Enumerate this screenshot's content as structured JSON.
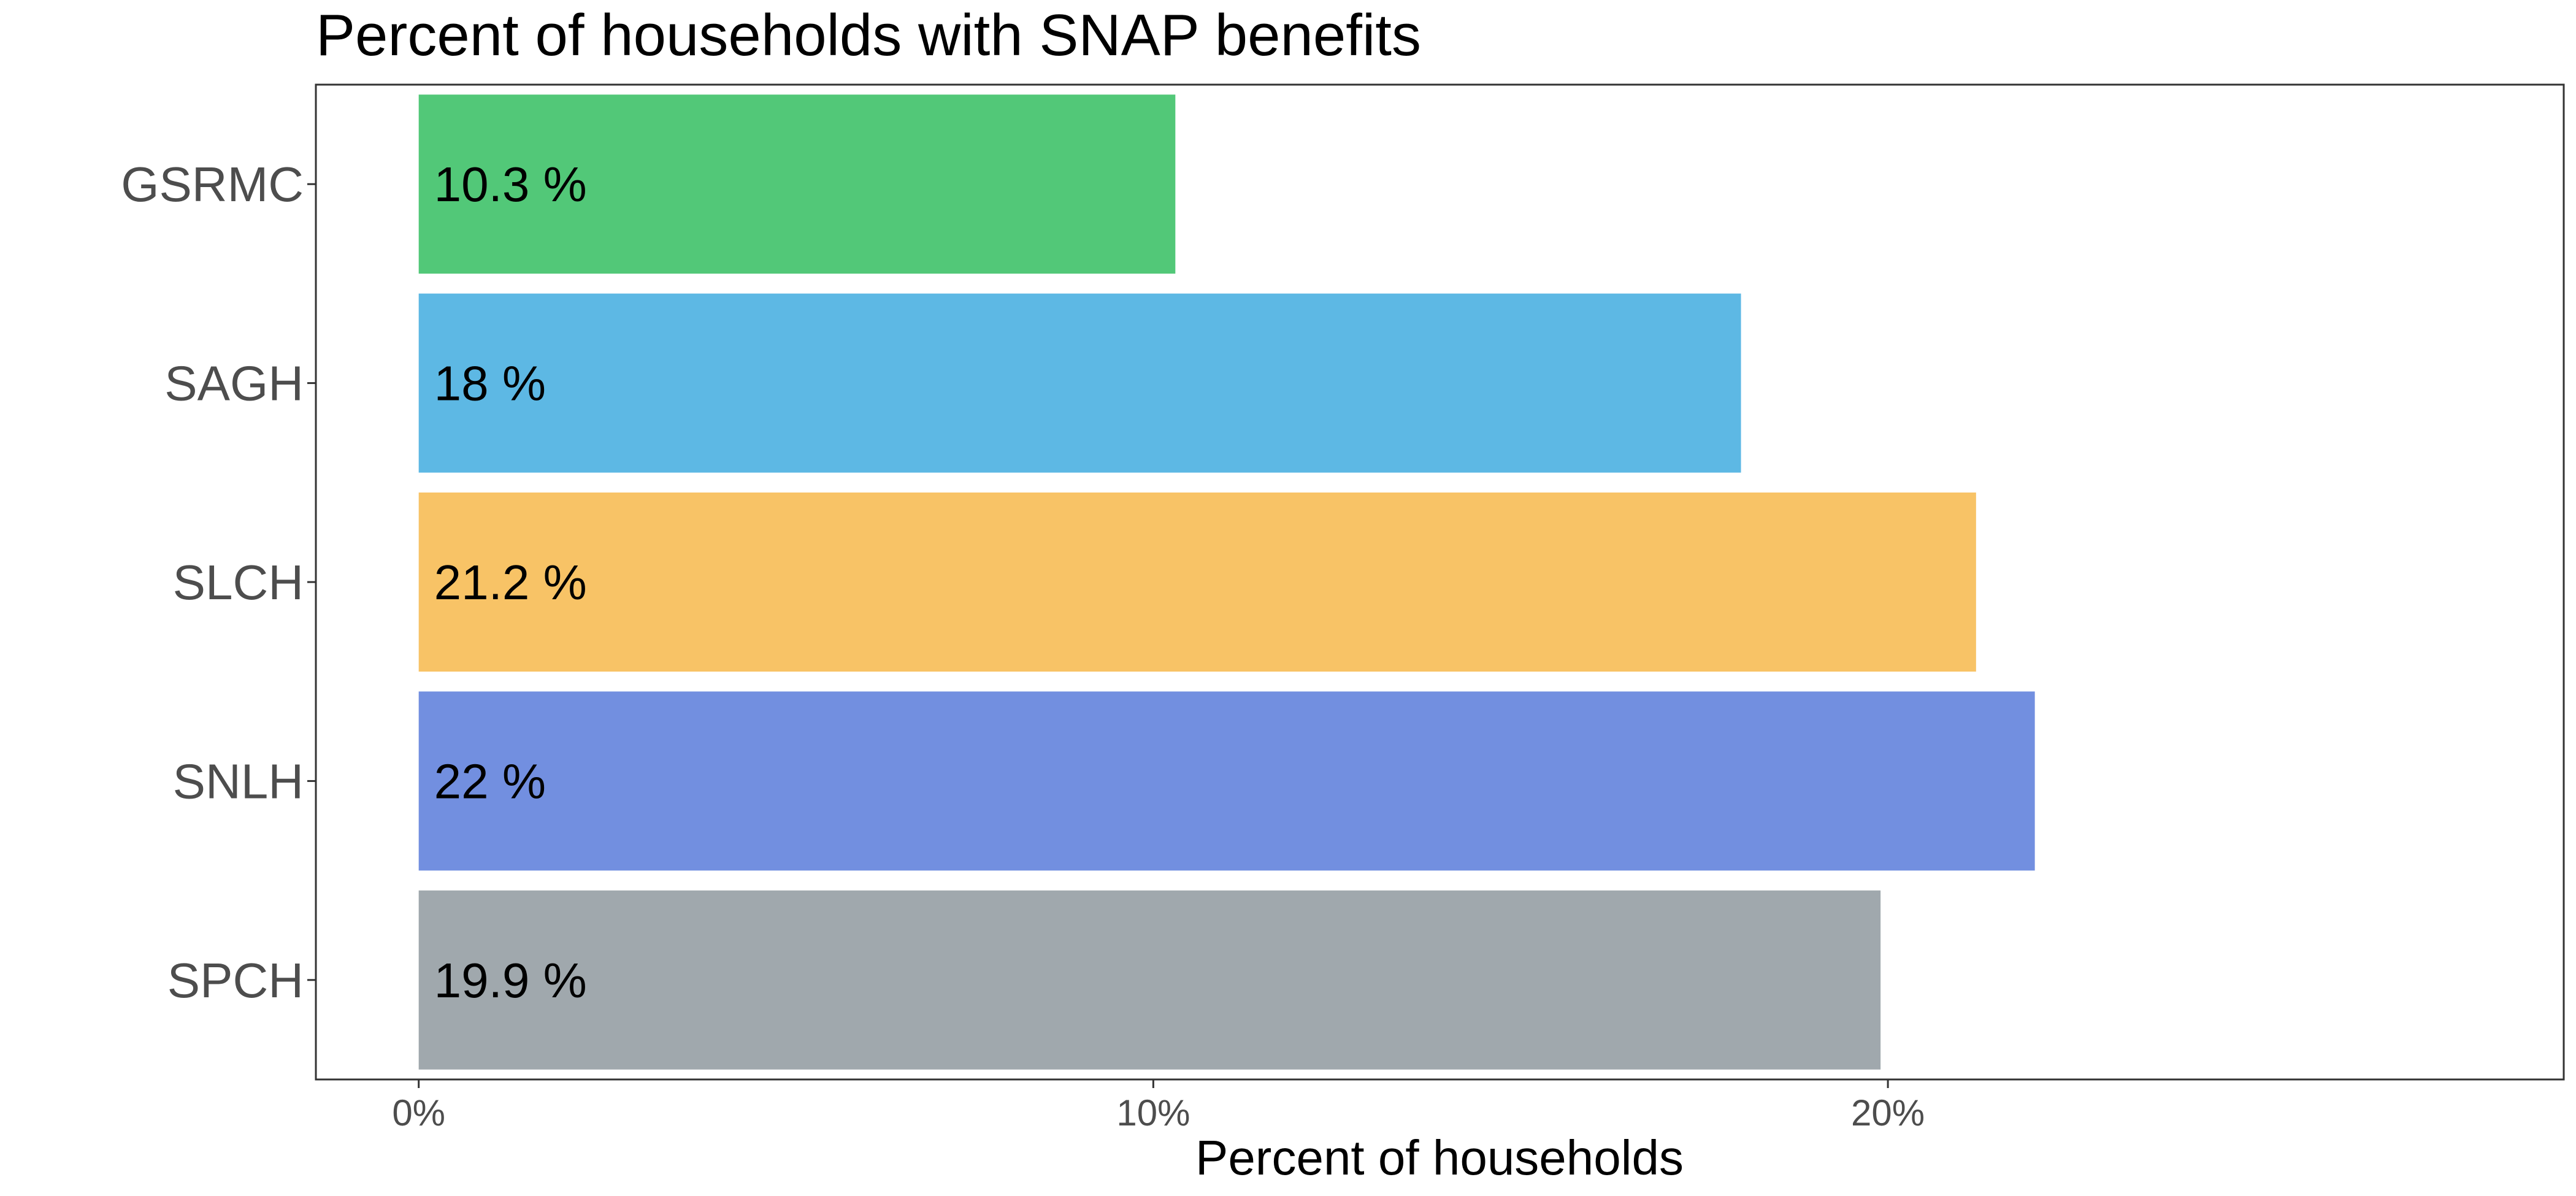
{
  "chart_data": {
    "type": "bar",
    "orientation": "horizontal",
    "title": "Percent of households with SNAP benefits",
    "xlabel": "Percent of households",
    "ylabel": "",
    "categories": [
      "GSRMC",
      "SAGH",
      "SLCH",
      "SNLH",
      "SPCH"
    ],
    "values": [
      10.3,
      18,
      21.2,
      22,
      19.9
    ],
    "data_labels": [
      "10.3 %",
      "18 %",
      "21.2 %",
      "22 %",
      "19.9 %"
    ],
    "colors": [
      "#52c878",
      "#5db8e4",
      "#f8c366",
      "#728fe0",
      "#a0a8ad"
    ],
    "xlim": [
      -1.4,
      29.2
    ],
    "x_ticks": [
      0,
      10,
      20
    ],
    "x_tick_labels": [
      "0%",
      "10%",
      "20%"
    ],
    "grid": false,
    "legend": "none"
  }
}
